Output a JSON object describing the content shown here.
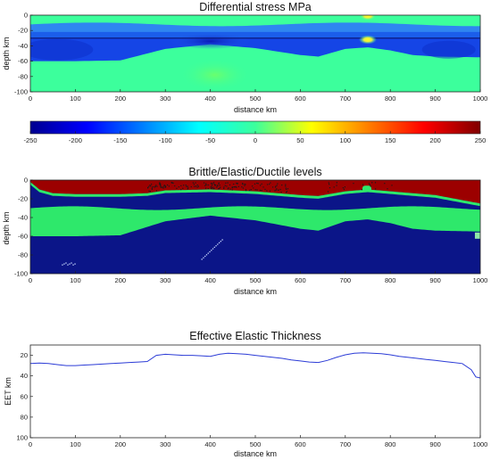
{
  "colors": {
    "axis": "#222222",
    "line": "#2b3bd6",
    "dark_red": "#9c0000",
    "green": "#2ee86b",
    "navy": "#0b1588",
    "blue": "#1545e6"
  },
  "chart_data": [
    {
      "type": "heatmap",
      "title": "Differential stress MPa",
      "xlabel": "distance km",
      "ylabel": "depth km",
      "xlim": [
        0,
        1000
      ],
      "ylim": [
        -100,
        0
      ],
      "xticks": [
        "0",
        "100",
        "200",
        "300",
        "400",
        "500",
        "600",
        "700",
        "800",
        "900",
        "1000"
      ],
      "yticks": [
        "0",
        "-20",
        "-40",
        "-60",
        "-80",
        "-100"
      ],
      "colorbar": {
        "min": -250,
        "max": 250,
        "colormap": "jet",
        "ticks": [
          "-250",
          "-200",
          "-150",
          "-100",
          "-50",
          "0",
          "50",
          "100",
          "150",
          "200",
          "250"
        ]
      },
      "layer_boundaries_depth_km": {
        "distance": [
          0,
          100,
          200,
          260,
          300,
          400,
          500,
          600,
          640,
          700,
          750,
          800,
          850,
          900,
          1000
        ],
        "upper_interface": [
          -30,
          -30,
          -30,
          -30,
          -30,
          -30,
          -30,
          -30,
          -30,
          -30,
          -30,
          -30,
          -30,
          -30,
          -30
        ],
        "lower_interface": [
          -60,
          -60,
          -59,
          -50,
          -44,
          -38,
          -43,
          -52,
          -54,
          -44,
          -42,
          -46,
          -52,
          -54,
          -55
        ]
      },
      "hotspot_distance_km": 750
    },
    {
      "type": "heatmap",
      "title": "Brittle/Elastic/Ductile levels",
      "xlabel": "distance km",
      "ylabel": "depth km",
      "xlim": [
        0,
        1000
      ],
      "ylim": [
        -100,
        0
      ],
      "xticks": [
        "0",
        "100",
        "200",
        "300",
        "400",
        "500",
        "600",
        "700",
        "800",
        "900",
        "1000"
      ],
      "yticks": [
        "0",
        "-20",
        "-40",
        "-60",
        "-80",
        "-100"
      ],
      "categories": [
        "Brittle",
        "Elastic",
        "Ductile"
      ],
      "brittle_base_depth_km": {
        "distance": [
          0,
          20,
          50,
          100,
          200,
          260,
          300,
          400,
          500,
          600,
          640,
          700,
          750,
          800,
          900,
          1000
        ],
        "depth": [
          -2,
          -10,
          -14,
          -15,
          -15,
          -14,
          -11,
          -10,
          -12,
          -16,
          -17,
          -12,
          -10,
          -12,
          -16,
          -25
        ]
      },
      "elastic_base_depth_km": {
        "distance": [
          0,
          100,
          200,
          260,
          300,
          400,
          500,
          600,
          640,
          700,
          750,
          800,
          850,
          900,
          1000
        ],
        "depth": [
          -60,
          -60,
          -59,
          -50,
          -44,
          -38,
          -43,
          -52,
          -54,
          -44,
          -42,
          -46,
          -52,
          -54,
          -55
        ]
      }
    },
    {
      "type": "line",
      "title": "Effective Elastic Thickness",
      "xlabel": "distance km",
      "ylabel": "EET km",
      "xlim": [
        0,
        1000
      ],
      "ylim": [
        100,
        10
      ],
      "y_reversed": true,
      "xticks": [
        "0",
        "100",
        "200",
        "300",
        "400",
        "500",
        "600",
        "700",
        "800",
        "900",
        "1000"
      ],
      "yticks": [
        "20",
        "40",
        "60",
        "80",
        "100"
      ],
      "x": [
        0,
        20,
        40,
        60,
        80,
        100,
        120,
        140,
        160,
        180,
        200,
        220,
        240,
        260,
        280,
        300,
        320,
        340,
        360,
        380,
        400,
        420,
        440,
        460,
        480,
        500,
        520,
        540,
        560,
        580,
        600,
        620,
        640,
        660,
        680,
        700,
        720,
        740,
        760,
        780,
        800,
        820,
        840,
        860,
        880,
        900,
        920,
        940,
        960,
        980,
        990,
        1000
      ],
      "y": [
        28,
        27.5,
        28,
        29,
        30,
        30,
        29.5,
        29,
        28.5,
        28,
        27.5,
        27,
        26.5,
        26,
        20,
        19,
        19.5,
        20,
        20,
        20.5,
        21,
        19,
        18,
        18.5,
        19,
        20,
        21,
        22,
        23,
        24.5,
        25.5,
        26.5,
        27,
        25,
        22,
        19.5,
        18,
        17.5,
        18,
        18.5,
        19.5,
        21,
        22,
        23,
        24,
        25,
        26,
        27,
        28,
        34,
        41,
        42
      ]
    }
  ]
}
